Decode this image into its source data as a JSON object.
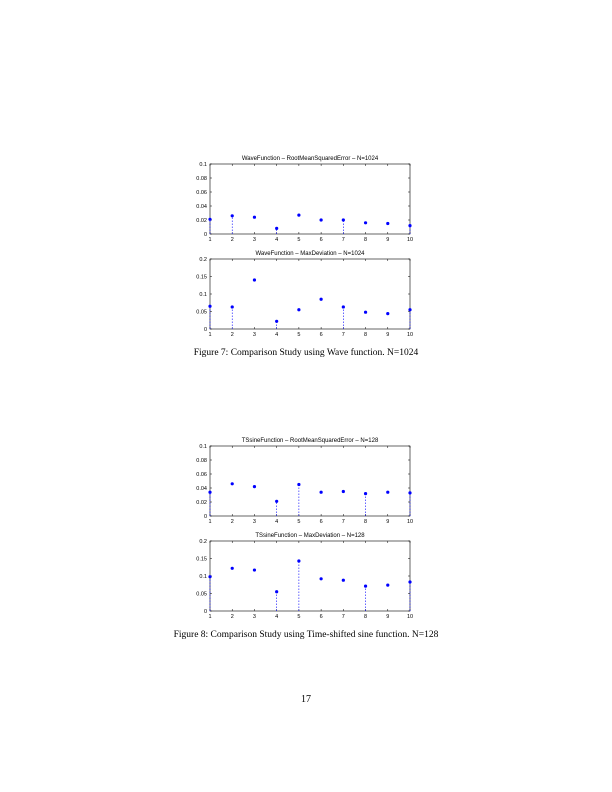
{
  "figures": [
    {
      "caption": "Figure 7: Comparison Study using Wave function. N=1024",
      "chart_data": [
        {
          "type": "scatter",
          "title": "WaveFunction – RootMeanSquaredError – N=1024",
          "x": [
            1,
            2,
            3,
            4,
            5,
            6,
            7,
            8,
            9,
            10
          ],
          "xticks": [
            "1",
            "2",
            "3",
            "4",
            "5",
            "6",
            "7",
            "8",
            "9",
            "10"
          ],
          "yticks": [
            "0",
            "0.02",
            "0.04",
            "0.06",
            "0.08",
            "0.1"
          ],
          "ylim": [
            0,
            0.1
          ],
          "series": [
            {
              "values": [
                0.021,
                0.026,
                0.024,
                0.008,
                0.027,
                0.02,
                0.02,
                0.016,
                0.015,
                0.012
              ]
            }
          ],
          "stems": [
            1,
            2,
            4,
            7,
            10
          ],
          "markers": "blue points with dashed stems",
          "color": "#0000ff"
        },
        {
          "type": "scatter",
          "title": "WaveFunction – MaxDeviation – N=1024",
          "x": [
            1,
            2,
            3,
            4,
            5,
            6,
            7,
            8,
            9,
            10
          ],
          "xticks": [
            "1",
            "2",
            "3",
            "4",
            "5",
            "6",
            "7",
            "8",
            "9",
            "10"
          ],
          "yticks": [
            "0",
            "0.05",
            "0.1",
            "0.15",
            "0.2"
          ],
          "ylim": [
            0,
            0.2
          ],
          "series": [
            {
              "values": [
                0.065,
                0.063,
                0.14,
                0.022,
                0.055,
                0.085,
                0.063,
                0.048,
                0.044,
                0.055
              ]
            }
          ],
          "stems": [
            1,
            2,
            4,
            7,
            10
          ],
          "markers": "blue points with dashed stems",
          "color": "#0000ff"
        }
      ]
    },
    {
      "caption": "Figure 8: Comparison Study using Time-shifted sine function. N=128",
      "chart_data": [
        {
          "type": "scatter",
          "title": "TSsineFunction – RootMeanSquaredError – N=128",
          "x": [
            1,
            2,
            3,
            4,
            5,
            6,
            7,
            8,
            9,
            10
          ],
          "xticks": [
            "1",
            "2",
            "3",
            "4",
            "5",
            "6",
            "7",
            "8",
            "9",
            "10"
          ],
          "yticks": [
            "0",
            "0.02",
            "0.04",
            "0.06",
            "0.08",
            "0.1"
          ],
          "ylim": [
            0,
            0.1
          ],
          "series": [
            {
              "values": [
                0.034,
                0.046,
                0.042,
                0.021,
                0.045,
                0.034,
                0.035,
                0.032,
                0.034,
                0.033
              ]
            }
          ],
          "stems": [
            1,
            4,
            5,
            8,
            10
          ],
          "markers": "blue points with dashed stems",
          "color": "#0000ff"
        },
        {
          "type": "scatter",
          "title": "TSsineFunction – MaxDeviation – N=128",
          "x": [
            1,
            2,
            3,
            4,
            5,
            6,
            7,
            8,
            9,
            10
          ],
          "xticks": [
            "1",
            "2",
            "3",
            "4",
            "5",
            "6",
            "7",
            "8",
            "9",
            "10"
          ],
          "yticks": [
            "0",
            "0.05",
            "0.1",
            "0.15",
            "0.2"
          ],
          "ylim": [
            0,
            0.2
          ],
          "series": [
            {
              "values": [
                0.098,
                0.122,
                0.117,
                0.055,
                0.143,
                0.092,
                0.088,
                0.071,
                0.074,
                0.083
              ]
            }
          ],
          "stems": [
            1,
            4,
            5,
            8,
            10
          ],
          "markers": "blue points with dashed stems",
          "color": "#0000ff"
        }
      ]
    }
  ],
  "page_number": "17"
}
